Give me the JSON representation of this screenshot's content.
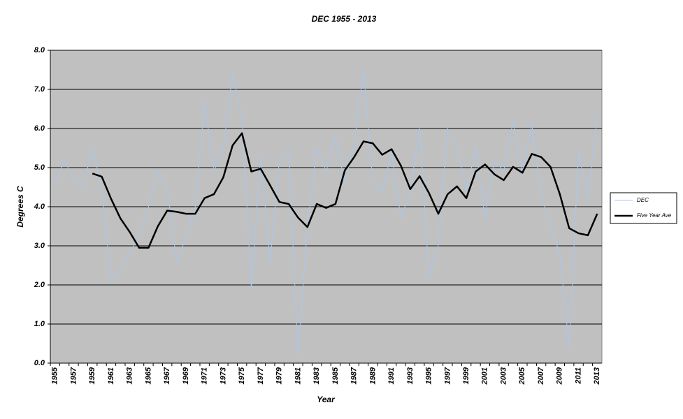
{
  "chart_data": {
    "type": "line",
    "title": "DEC 1955 - 2013",
    "x_label": "Year",
    "y_label": "Degrees C",
    "categories": [
      "1955",
      null,
      "1957",
      null,
      "1959",
      null,
      "1961",
      null,
      "1963",
      null,
      "1965",
      null,
      "1967",
      null,
      "1969",
      null,
      "1971",
      null,
      "1973",
      null,
      "1975",
      null,
      "1977",
      null,
      "1979",
      null,
      "1981",
      null,
      "1983",
      null,
      "1985",
      null,
      "1987",
      null,
      "1989",
      null,
      "1991",
      null,
      "1993",
      null,
      "1995",
      null,
      "1997",
      null,
      "1999",
      null,
      "2001",
      null,
      "2003",
      null,
      "2005",
      null,
      "2007",
      null,
      "2009",
      null,
      "2011",
      null,
      "2013"
    ],
    "series": [
      {
        "name": "DEC",
        "color": "#a6c8f0",
        "values": [
          4.6,
          5.2,
          4.7,
          4.5,
          5.5,
          4.5,
          2.1,
          2.4,
          2.8,
          3.3,
          4.0,
          4.9,
          4.5,
          2.6,
          3.2,
          4.0,
          6.7,
          4.9,
          5.5,
          7.4,
          6.3,
          1.9,
          5.3,
          2.6,
          5.2,
          5.4,
          0.2,
          3.5,
          5.5,
          4.9,
          5.8,
          4.6,
          5.6,
          7.5,
          4.6,
          4.4,
          5.4,
          3.7,
          4.4,
          6.0,
          2.2,
          3.0,
          6.0,
          5.5,
          4.4,
          5.5,
          3.7,
          5.2,
          4.9,
          6.2,
          4.9,
          6.1,
          4.3,
          3.5,
          2.8,
          0.4,
          5.4,
          4.2,
          6.3
        ]
      },
      {
        "name": "Five Year Ave",
        "color": "#000000",
        "values": [
          null,
          null,
          null,
          null,
          4.85,
          4.77,
          4.2,
          3.7,
          3.35,
          2.95,
          2.95,
          3.5,
          3.9,
          3.87,
          3.82,
          3.82,
          4.22,
          4.32,
          4.75,
          5.57,
          5.88,
          4.9,
          4.97,
          4.55,
          4.12,
          4.07,
          3.72,
          3.48,
          4.07,
          3.97,
          4.07,
          4.93,
          5.27,
          5.67,
          5.62,
          5.33,
          5.47,
          5.05,
          4.45,
          4.78,
          4.35,
          3.82,
          4.32,
          4.52,
          4.22,
          4.9,
          5.08,
          4.83,
          4.68,
          5.02,
          4.87,
          5.35,
          5.27,
          5.02,
          4.32,
          3.45,
          3.32,
          3.27,
          3.82
        ]
      }
    ],
    "ylim": [
      0,
      8
    ],
    "yticks": [
      {
        "value": 0,
        "label": "0.0"
      },
      {
        "value": 1,
        "label": "1.0"
      },
      {
        "value": 2,
        "label": "2.0"
      },
      {
        "value": 3,
        "label": "3.0"
      },
      {
        "value": 4,
        "label": "4.0"
      },
      {
        "value": 5,
        "label": "5.0"
      },
      {
        "value": 6,
        "label": "6.0"
      },
      {
        "value": 7,
        "label": "7.0"
      },
      {
        "value": 8,
        "label": "8.0"
      }
    ],
    "grid": true,
    "legend": "right",
    "plot_background": "#c0c0c0"
  }
}
